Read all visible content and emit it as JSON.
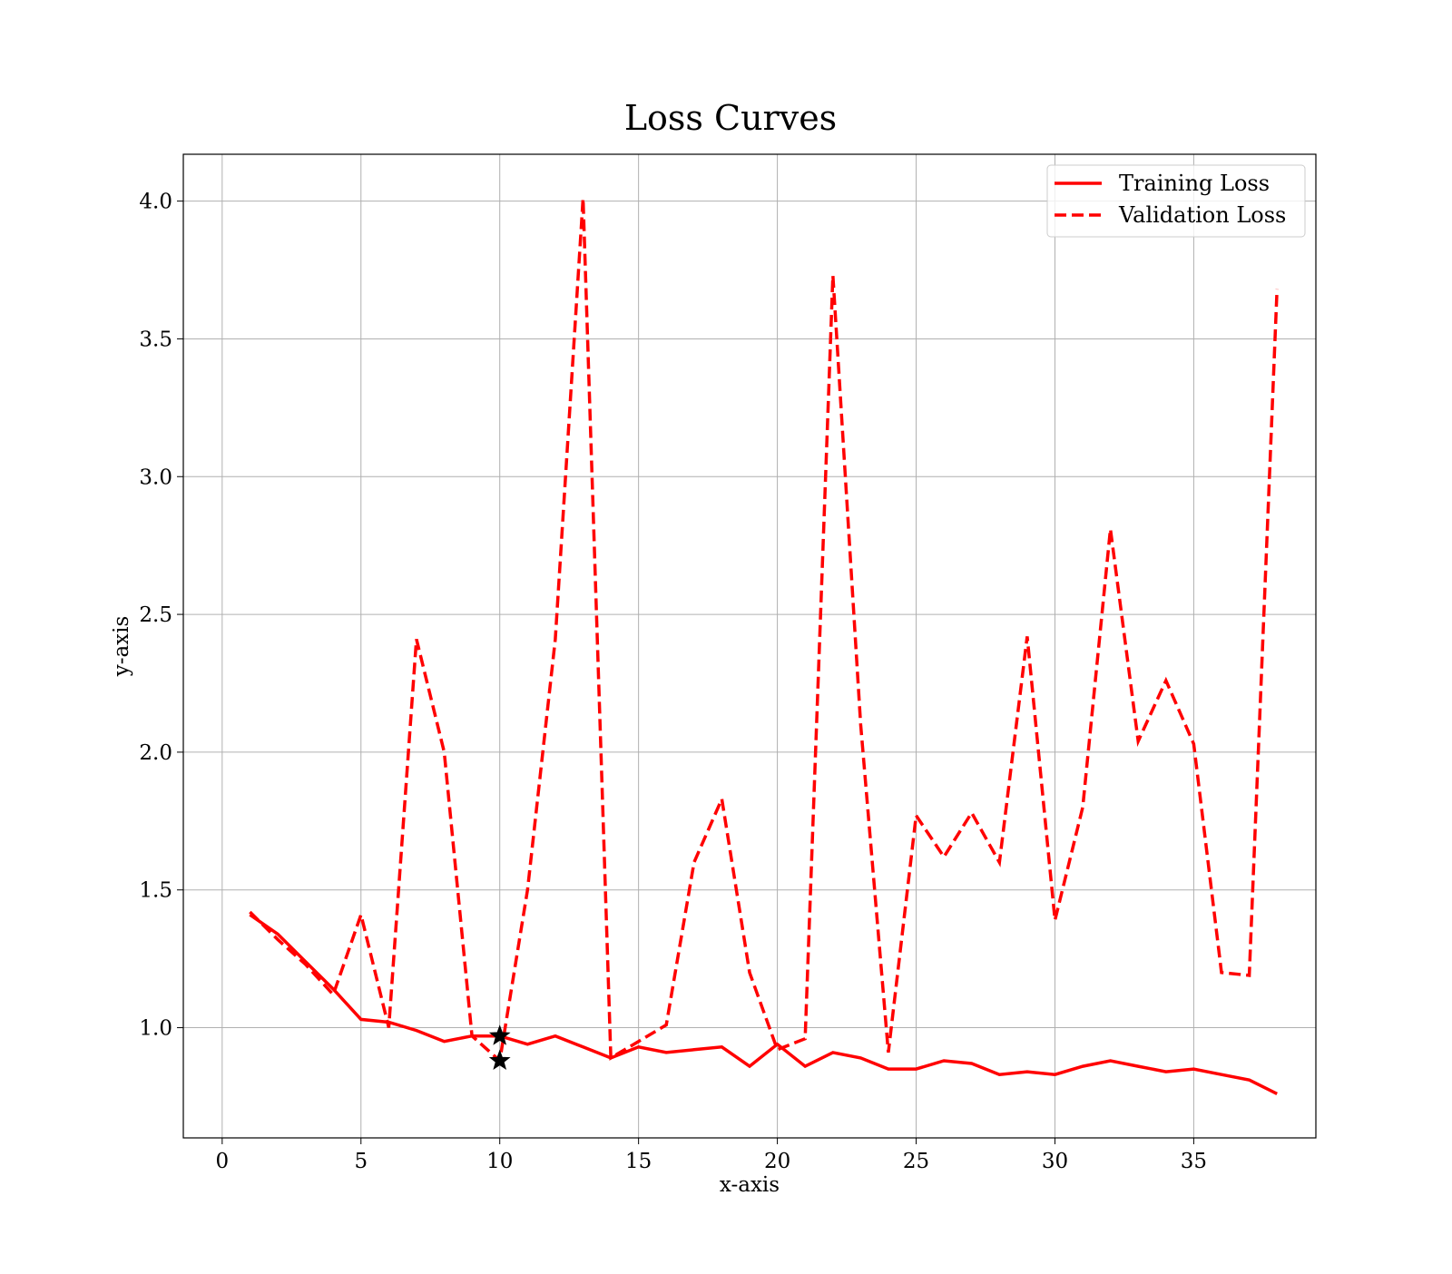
{
  "chart_data": {
    "type": "line",
    "title": "Loss Curves",
    "xlabel": "x-axis",
    "ylabel": "y-axis",
    "xlim": [
      -1.4,
      39.4
    ],
    "ylim": [
      0.6,
      4.17
    ],
    "xticks": [
      0,
      5,
      10,
      15,
      20,
      25,
      30,
      35
    ],
    "yticks": [
      1.0,
      1.5,
      2.0,
      2.5,
      3.0,
      3.5,
      4.0
    ],
    "xtick_labels": [
      "0",
      "5",
      "10",
      "15",
      "20",
      "25",
      "30",
      "35"
    ],
    "ytick_labels": [
      "1.0",
      "1.5",
      "2.0",
      "2.5",
      "3.0",
      "3.5",
      "4.0"
    ],
    "grid": true,
    "legend_position": "top-right",
    "x": [
      1,
      2,
      3,
      4,
      5,
      6,
      7,
      8,
      9,
      10,
      11,
      12,
      13,
      14,
      15,
      16,
      17,
      18,
      19,
      20,
      21,
      22,
      23,
      24,
      25,
      26,
      27,
      28,
      29,
      30,
      31,
      32,
      33,
      34,
      35,
      36,
      37,
      38
    ],
    "series": [
      {
        "name": "Training Loss",
        "color": "#ff0000",
        "line_style": "solid",
        "values": [
          1.41,
          1.34,
          1.24,
          1.14,
          1.03,
          1.02,
          0.99,
          0.95,
          0.97,
          0.97,
          0.94,
          0.97,
          0.93,
          0.89,
          0.93,
          0.91,
          0.92,
          0.93,
          0.86,
          0.94,
          0.86,
          0.91,
          0.89,
          0.85,
          0.85,
          0.88,
          0.87,
          0.83,
          0.84,
          0.83,
          0.86,
          0.88,
          0.86,
          0.84,
          0.85,
          0.83,
          0.81,
          0.76
        ]
      },
      {
        "name": "Validation Loss",
        "color": "#ff0000",
        "line_style": "dashed",
        "values": [
          1.42,
          1.32,
          1.23,
          1.12,
          1.41,
          1.0,
          2.41,
          2.0,
          0.97,
          0.88,
          1.5,
          2.41,
          4.01,
          0.89,
          0.95,
          1.01,
          1.6,
          1.83,
          1.2,
          0.92,
          0.96,
          3.73,
          2.1,
          0.91,
          1.77,
          1.62,
          1.78,
          1.6,
          2.42,
          1.39,
          1.8,
          2.81,
          2.04,
          2.26,
          2.03,
          1.2,
          1.19,
          3.68
        ]
      }
    ],
    "markers": [
      {
        "x": 10,
        "y": 0.97,
        "symbol": "star",
        "color": "#000000",
        "series": "Training Loss"
      },
      {
        "x": 10,
        "y": 0.88,
        "symbol": "star",
        "color": "#000000",
        "series": "Validation Loss"
      }
    ]
  }
}
